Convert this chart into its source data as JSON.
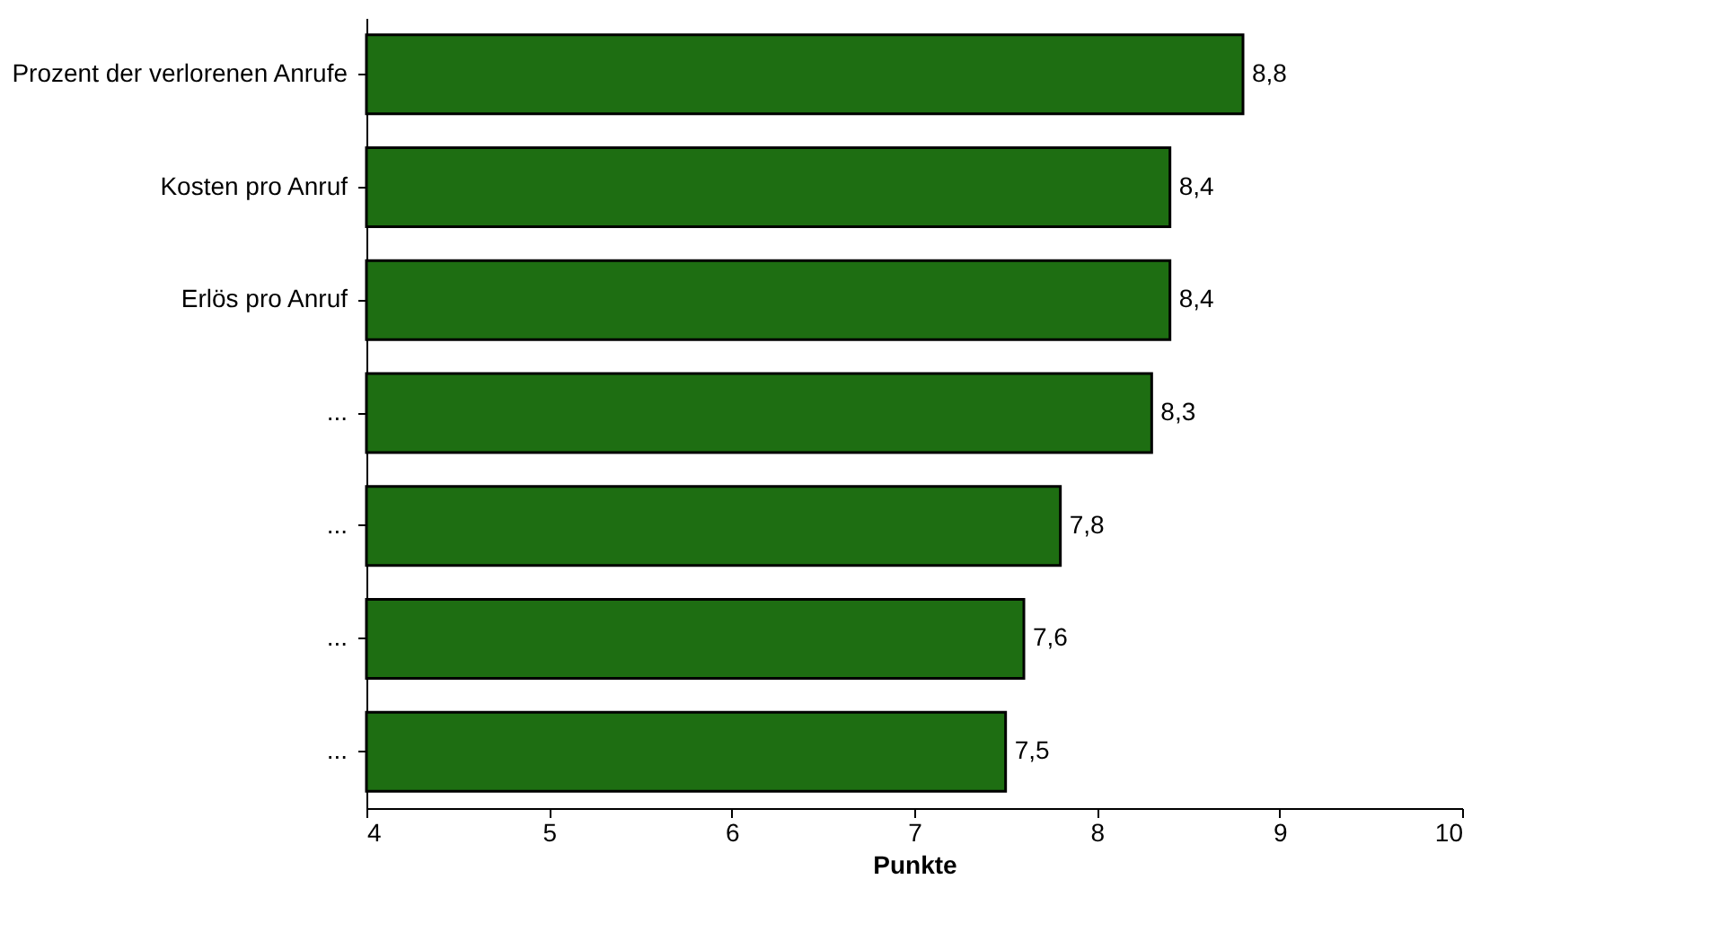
{
  "chart_data": {
    "type": "bar",
    "orientation": "horizontal",
    "xlabel": "Punkte",
    "categories": [
      "Prozent der verlorenen Anrufe",
      "Kosten pro Anruf",
      "Erlös pro Anruf",
      "...",
      "...",
      "...",
      "..."
    ],
    "values": [
      8.8,
      8.4,
      8.4,
      8.3,
      7.8,
      7.6,
      7.5
    ],
    "value_labels": [
      "8,8",
      "8,4",
      "8,4",
      "8,3",
      "7,8",
      "7,6",
      "7,5"
    ],
    "color": "#1e6e12",
    "xlim": [
      4,
      10
    ],
    "xticks": [
      4,
      5,
      6,
      7,
      8,
      9,
      10
    ],
    "grid": false
  }
}
